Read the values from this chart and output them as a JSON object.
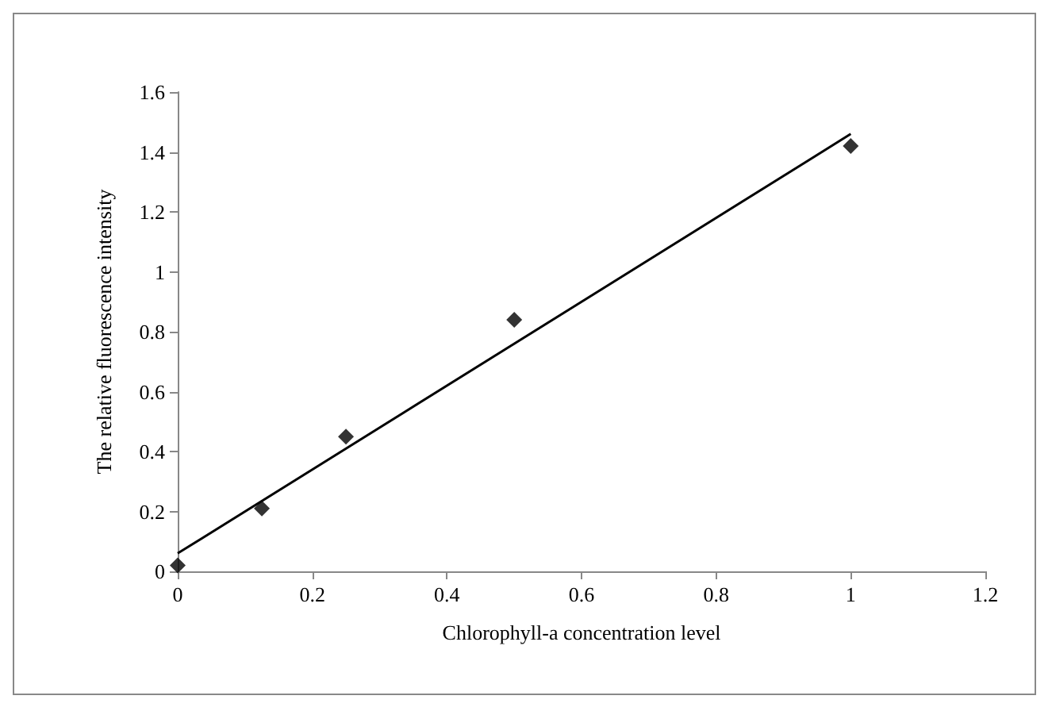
{
  "chart_data": {
    "type": "scatter",
    "xlabel": "Chlorophyll-a concentration level",
    "ylabel": "The relative fluorescence intensity",
    "xlim": [
      0,
      1.2
    ],
    "xticks": [
      0,
      0.2,
      0.4,
      0.6,
      0.8,
      1,
      1.2
    ],
    "ylim": [
      0,
      1.6
    ],
    "yticks": [
      0,
      0.2,
      0.4,
      0.6,
      0.8,
      1,
      1.2,
      1.4,
      1.6
    ],
    "series": [
      {
        "type": "scatter",
        "color": "#000000",
        "marker": "diamond",
        "x": [
          0,
          0.125,
          0.25,
          0.5,
          1
        ],
        "values": [
          0.02,
          0.21,
          0.45,
          0.84,
          1.42
        ]
      },
      {
        "type": "line",
        "color": "#000000",
        "marker": "none",
        "x": [
          0,
          1
        ],
        "values": [
          0.06,
          1.46
        ]
      }
    ]
  }
}
